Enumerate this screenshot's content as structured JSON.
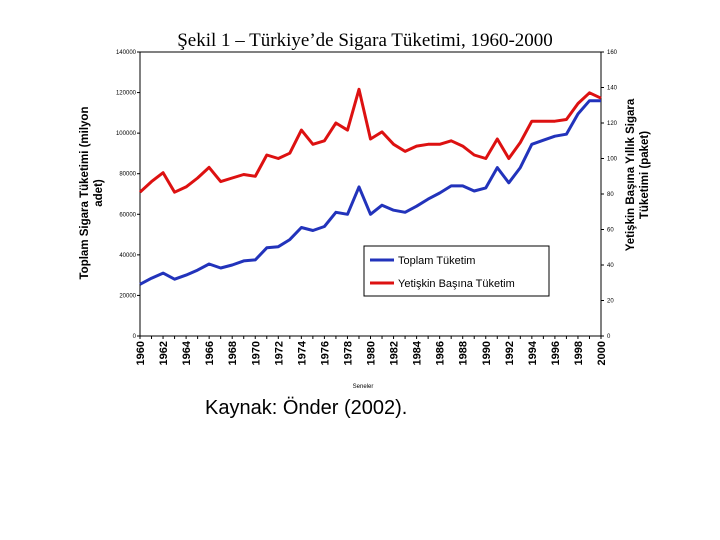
{
  "chart_data": {
    "type": "line",
    "title": "Şekil 1 – Türkiye’de Sigara Tüketimi, 1960-2000",
    "xlabel": "Seneler",
    "ylabel_left": [
      "Toplam Sigara Tüketimi (milyon",
      "adet)"
    ],
    "ylabel_right": [
      "Yetişkin Başına Yıllık Sigara",
      "Tüketimi (paket)"
    ],
    "x": [
      1960,
      1961,
      1962,
      1963,
      1964,
      1965,
      1966,
      1967,
      1968,
      1969,
      1970,
      1971,
      1972,
      1973,
      1974,
      1975,
      1976,
      1977,
      1978,
      1979,
      1980,
      1981,
      1982,
      1983,
      1984,
      1985,
      1986,
      1987,
      1988,
      1989,
      1990,
      1991,
      1992,
      1993,
      1994,
      1995,
      1996,
      1997,
      1998,
      1999,
      2000
    ],
    "x_tick_labels": [
      "1960",
      "1962",
      "1964",
      "1966",
      "1968",
      "1970",
      "1972",
      "1974",
      "1976",
      "1978",
      "1980",
      "1982",
      "1984",
      "1986",
      "1988",
      "1990",
      "1992",
      "1994",
      "1996",
      "1998",
      "2000"
    ],
    "y_left_ticks": [
      "0",
      "20000",
      "40000",
      "60000",
      "80000",
      "100000",
      "120000",
      "140000"
    ],
    "y_right_ticks": [
      "0",
      "20",
      "40",
      "60",
      "80",
      "100",
      "120",
      "140",
      "160"
    ],
    "ylim_left": [
      0,
      140000
    ],
    "ylim_right": [
      0,
      160
    ],
    "legend_placement": "lower-right",
    "series": [
      {
        "name": "Toplam Tüketim",
        "axis": "left",
        "color": "#2233bb",
        "values": [
          25500,
          28500,
          31000,
          28000,
          30000,
          32500,
          35500,
          33500,
          35000,
          37000,
          37500,
          43500,
          44000,
          47500,
          53500,
          52000,
          54000,
          61000,
          60000,
          73500,
          60000,
          64500,
          62000,
          61000,
          64000,
          67500,
          70500,
          74000,
          74000,
          71500,
          73000,
          83000,
          75500,
          83000,
          94500,
          96500,
          98500,
          99500,
          109500,
          116000,
          116000
        ]
      },
      {
        "name": "Yetişkin Başına Tüketim",
        "axis": "right",
        "color": "#dd1111",
        "values": [
          81,
          87,
          92,
          81,
          84,
          89,
          95,
          87,
          89,
          91,
          90,
          102,
          100,
          103,
          116,
          108,
          110,
          120,
          116,
          139,
          111,
          115,
          108,
          104,
          107,
          108,
          108,
          110,
          107,
          102,
          100,
          111,
          100,
          109,
          121,
          121,
          121,
          122,
          131,
          137,
          134
        ]
      }
    ]
  },
  "caption": "Kaynak: Önder (2002)."
}
